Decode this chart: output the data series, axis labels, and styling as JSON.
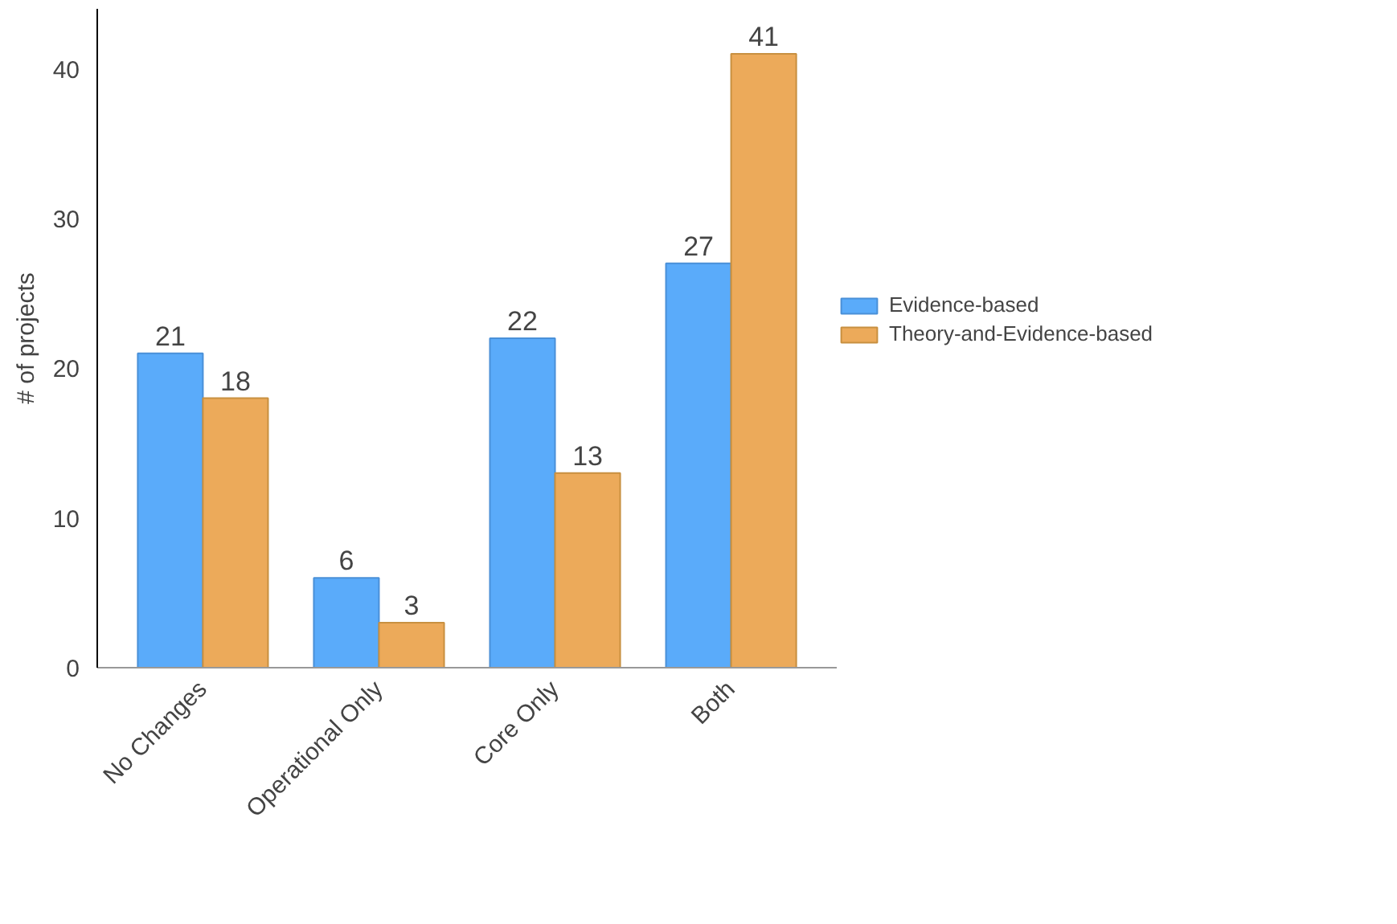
{
  "chart_data": {
    "type": "bar",
    "ylabel": "# of projects",
    "categories": [
      "No Changes",
      "Operational Only",
      "Core Only",
      "Both"
    ],
    "series": [
      {
        "name": "Evidence-based",
        "color": "#5aabfa",
        "values": [
          21,
          6,
          22,
          27
        ]
      },
      {
        "name": "Theory-and-Evidence-based",
        "color": "#ecaa5a",
        "values": [
          18,
          3,
          13,
          41
        ]
      }
    ],
    "ylim": [
      0,
      44
    ],
    "yticks": [
      0,
      10,
      20,
      30,
      40
    ],
    "data_labels": true,
    "grid": false,
    "legend": "right"
  }
}
